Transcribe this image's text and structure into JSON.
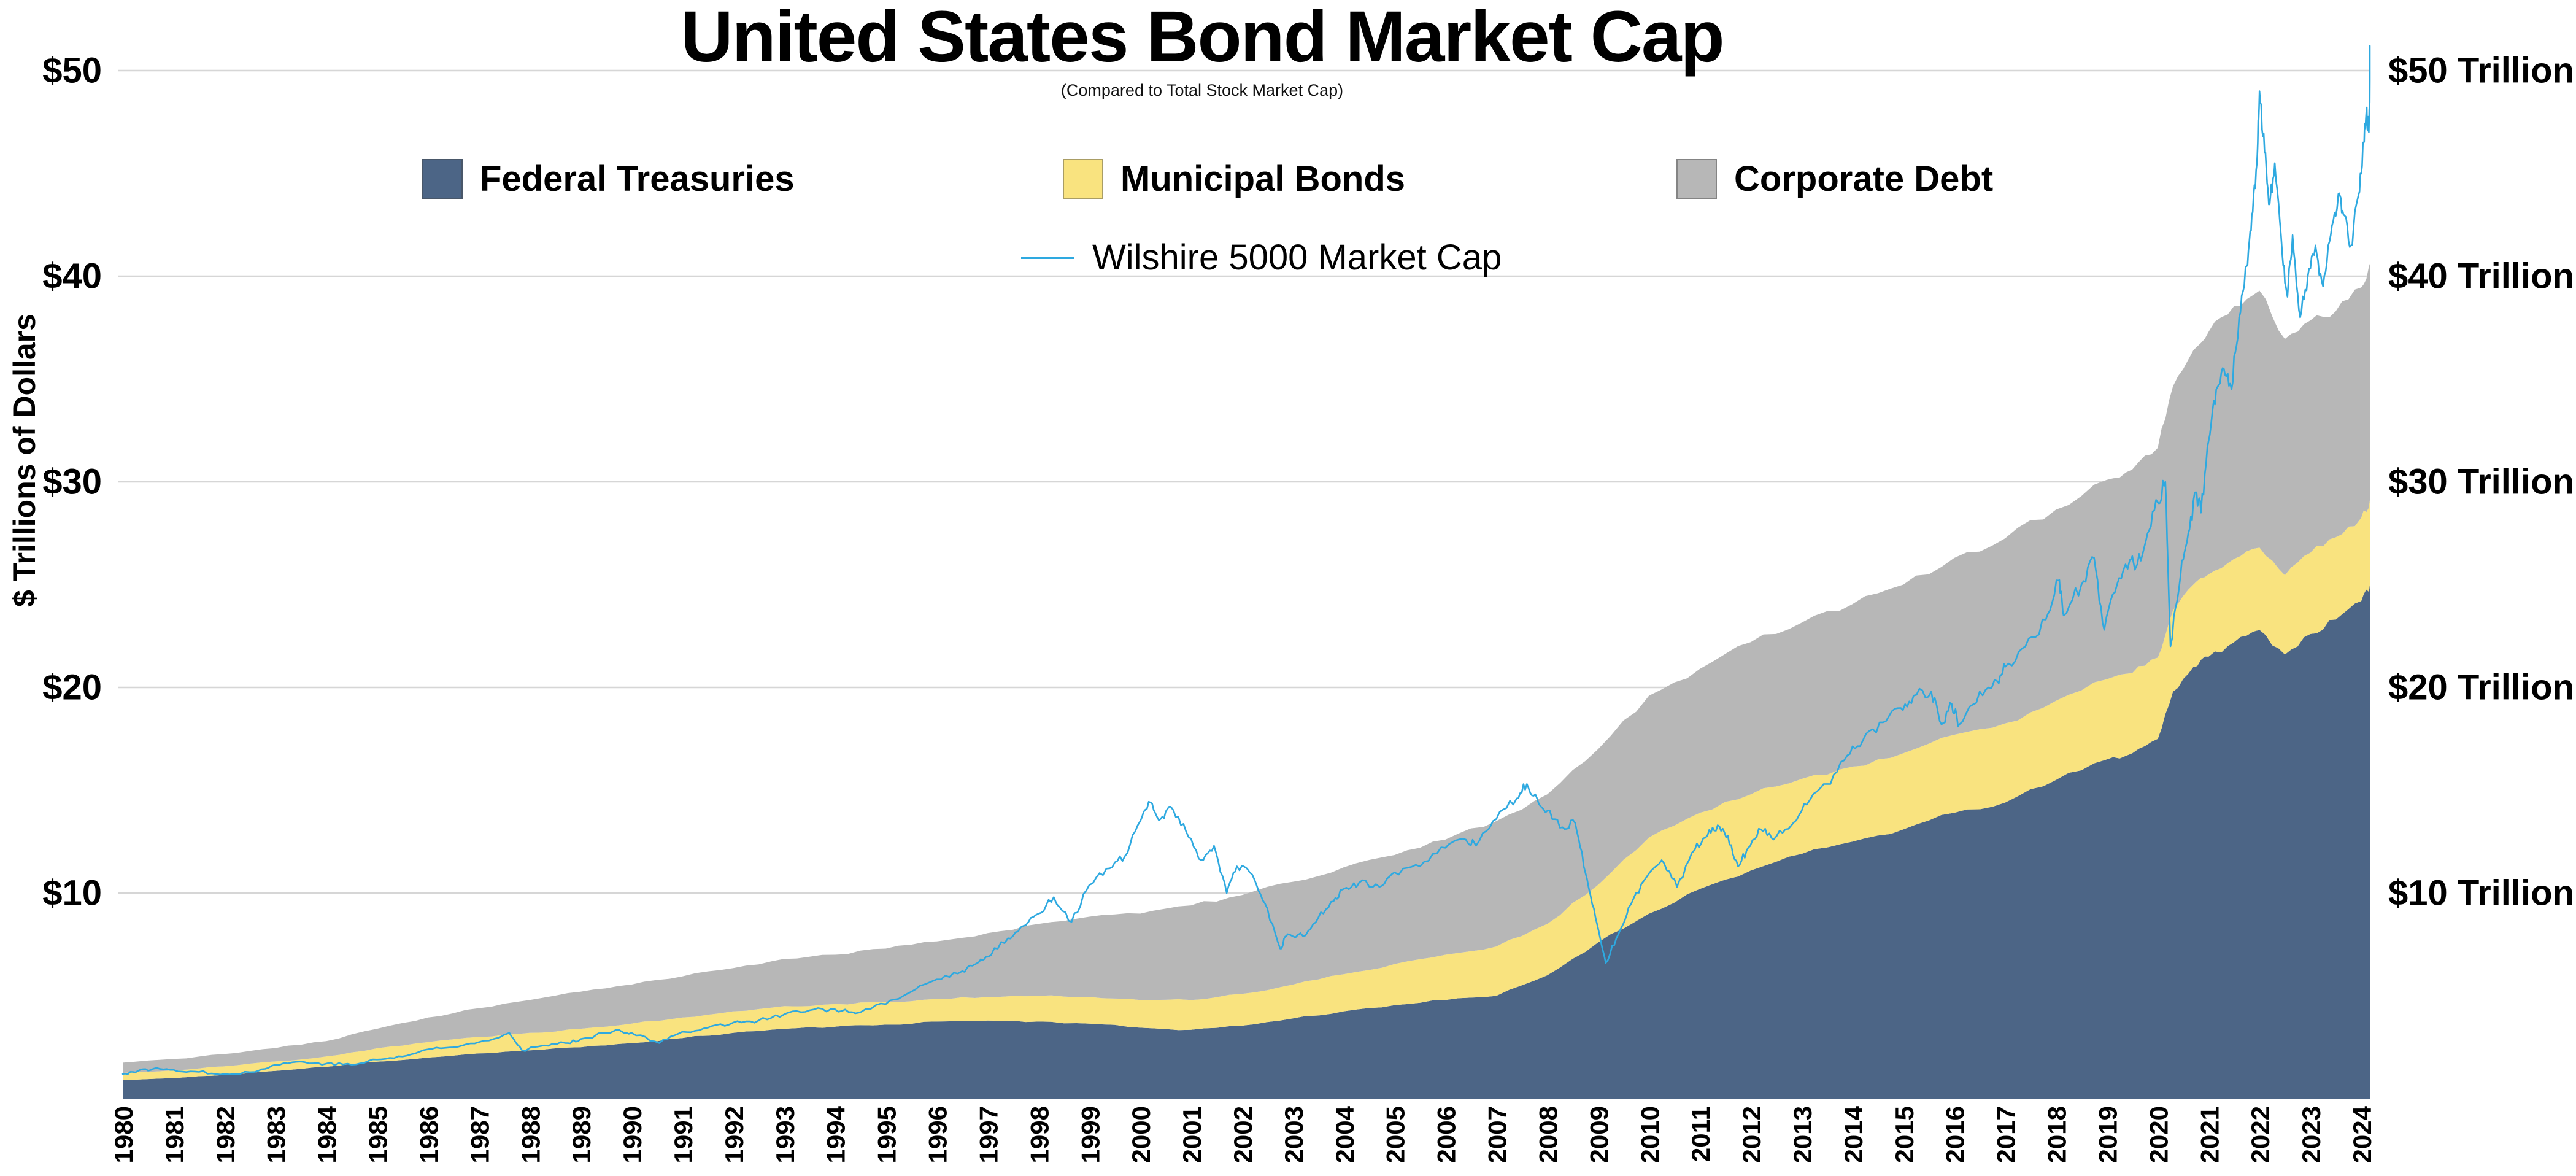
{
  "chart_data": {
    "type": "area",
    "title": "United States Bond Market Cap",
    "subtitle": "(Compared to Total Stock Market Cap)",
    "ylabel": "$ Trillions of Dollars",
    "ylim": [
      0,
      52
    ],
    "grid": true,
    "legend_position": "top",
    "x": [
      1980,
      1981,
      1982,
      1983,
      1984,
      1985,
      1986,
      1987,
      1988,
      1989,
      1990,
      1991,
      1992,
      1993,
      1994,
      1995,
      1996,
      1997,
      1998,
      1999,
      2000,
      2001,
      2002,
      2003,
      2004,
      2005,
      2006,
      2007,
      2008,
      2009,
      2010,
      2011,
      2012,
      2013,
      2014,
      2015,
      2016,
      2017,
      2018,
      2019,
      2019.5,
      2020,
      2020.3,
      2020.7,
      2021,
      2021.5,
      2022,
      2022.5,
      2023,
      2023.5,
      2024,
      2024.2
    ],
    "series": [
      {
        "name": "Federal Treasuries",
        "color": "#4c6586",
        "values": [
          0.9,
          1.0,
          1.15,
          1.35,
          1.55,
          1.8,
          2.0,
          2.2,
          2.35,
          2.5,
          2.7,
          2.95,
          3.2,
          3.4,
          3.5,
          3.6,
          3.75,
          3.8,
          3.75,
          3.65,
          3.45,
          3.35,
          3.55,
          3.9,
          4.25,
          4.55,
          4.8,
          5.0,
          6.0,
          7.6,
          9.0,
          10.2,
          11.1,
          11.9,
          12.5,
          13.1,
          13.9,
          14.4,
          15.5,
          16.5,
          16.8,
          17.5,
          19.8,
          21.0,
          21.5,
          22.2,
          22.8,
          21.6,
          22.6,
          23.3,
          24.2,
          25.0
        ]
      },
      {
        "name": "Municipal Bonds",
        "color": "#f9e37f",
        "values": [
          0.35,
          0.38,
          0.42,
          0.46,
          0.5,
          0.65,
          0.75,
          0.8,
          0.85,
          0.9,
          0.95,
          1.0,
          1.05,
          1.1,
          1.1,
          1.1,
          1.1,
          1.15,
          1.25,
          1.3,
          1.35,
          1.45,
          1.55,
          1.65,
          1.8,
          2.0,
          2.2,
          2.4,
          2.5,
          2.8,
          3.7,
          3.7,
          3.7,
          3.65,
          3.65,
          3.7,
          3.8,
          3.85,
          3.85,
          3.9,
          3.9,
          3.95,
          3.95,
          4.0,
          4.0,
          4.05,
          4.0,
          3.85,
          3.95,
          4.0,
          4.05,
          4.1
        ]
      },
      {
        "name": "Corporate Debt",
        "color": "#b7b7b7",
        "values": [
          0.5,
          0.55,
          0.6,
          0.65,
          0.75,
          0.95,
          1.2,
          1.4,
          1.6,
          1.8,
          1.9,
          2.0,
          2.1,
          2.3,
          2.4,
          2.6,
          2.8,
          3.1,
          3.5,
          3.9,
          4.2,
          4.6,
          4.8,
          5.0,
          5.2,
          5.3,
          5.6,
          6.1,
          6.3,
          6.6,
          6.9,
          7.0,
          7.4,
          7.6,
          7.9,
          8.2,
          8.6,
          9.0,
          9.3,
          9.7,
          9.9,
          10.2,
          10.9,
          11.4,
          11.8,
          12.3,
          12.5,
          11.5,
          11.3,
          11.0,
          11.2,
          11.5
        ]
      }
    ],
    "line": {
      "name": "Wilshire 5000 Market Cap",
      "color": "#2ea9e0",
      "x": [
        1980.0,
        1980.3,
        1980.6,
        1981.0,
        1981.5,
        1982.0,
        1982.6,
        1983.0,
        1983.5,
        1984.0,
        1984.5,
        1985.0,
        1985.5,
        1986.0,
        1986.5,
        1987.0,
        1987.6,
        1987.85,
        1988.2,
        1988.7,
        1989.0,
        1989.7,
        1990.0,
        1990.55,
        1991.0,
        1991.5,
        1992.0,
        1992.5,
        1993.0,
        1993.5,
        1994.0,
        1994.4,
        1995.0,
        1995.5,
        1996.0,
        1996.5,
        1996.8,
        1997.0,
        1997.4,
        1997.7,
        1998.0,
        1998.3,
        1998.65,
        1999.0,
        1999.4,
        1999.7,
        2000.0,
        2000.2,
        2000.4,
        2000.6,
        2000.9,
        2001.2,
        2001.45,
        2001.7,
        2001.9,
        2002.2,
        2002.45,
        2002.75,
        2002.9,
        2003.2,
        2003.5,
        2003.8,
        2004.0,
        2004.3,
        2004.7,
        2005.0,
        2005.5,
        2006.0,
        2006.4,
        2006.6,
        2007.0,
        2007.4,
        2007.6,
        2007.8,
        2008.0,
        2008.3,
        2008.55,
        2008.75,
        2008.95,
        2009.15,
        2009.4,
        2009.6,
        2009.9,
        2010.25,
        2010.55,
        2010.9,
        2011.15,
        2011.35,
        2011.55,
        2011.75,
        2011.95,
        2012.2,
        2012.45,
        2012.8,
        2013.1,
        2013.5,
        2013.9,
        2014.2,
        2014.6,
        2014.95,
        2015.2,
        2015.55,
        2015.75,
        2015.95,
        2016.1,
        2016.5,
        2016.85,
        2017.0,
        2017.4,
        2017.8,
        2018.05,
        2018.15,
        2018.5,
        2018.75,
        2018.95,
        2019.2,
        2019.45,
        2019.6,
        2019.8,
        2020.0,
        2020.15,
        2020.25,
        2020.45,
        2020.6,
        2020.75,
        2020.85,
        2021.0,
        2021.15,
        2021.3,
        2021.45,
        2021.6,
        2021.75,
        2021.85,
        2021.95,
        2022.0,
        2022.1,
        2022.2,
        2022.3,
        2022.45,
        2022.55,
        2022.65,
        2022.8,
        2022.95,
        2023.1,
        2023.25,
        2023.4,
        2023.55,
        2023.65,
        2023.8,
        2023.95,
        2024.05,
        2024.1,
        2024.15,
        2024.2
      ],
      "values": [
        1.2,
        1.35,
        1.45,
        1.4,
        1.3,
        1.2,
        1.3,
        1.65,
        1.8,
        1.7,
        1.65,
        1.9,
        2.05,
        2.4,
        2.5,
        2.75,
        3.2,
        2.35,
        2.55,
        2.7,
        2.9,
        3.35,
        3.2,
        2.7,
        3.25,
        3.45,
        3.7,
        3.8,
        4.1,
        4.3,
        4.35,
        4.15,
        4.6,
        5.2,
        5.8,
        6.2,
        6.6,
        6.9,
        7.8,
        8.4,
        9.0,
        9.8,
        8.6,
        10.4,
        11.2,
        11.8,
        13.5,
        14.4,
        13.6,
        14.2,
        13.0,
        11.6,
        12.3,
        10.0,
        11.3,
        10.9,
        9.5,
        7.3,
        8.0,
        7.9,
        8.8,
        9.6,
        10.2,
        10.5,
        10.3,
        11.0,
        11.3,
        12.2,
        12.6,
        12.3,
        13.6,
        14.6,
        15.3,
        14.6,
        14.0,
        13.2,
        13.4,
        11.0,
        8.8,
        6.6,
        8.0,
        9.3,
        10.6,
        11.6,
        10.3,
        12.1,
        12.8,
        13.3,
        12.8,
        11.3,
        12.2,
        13.1,
        12.6,
        13.3,
        14.3,
        15.3,
        16.7,
        17.4,
        18.3,
        19.0,
        19.6,
        19.8,
        18.2,
        19.2,
        18.2,
        19.8,
        20.3,
        21.0,
        22.0,
        23.3,
        25.2,
        23.5,
        25.0,
        26.3,
        22.8,
        25.0,
        26.2,
        26.0,
        27.5,
        29.0,
        30.0,
        22.0,
        25.5,
        27.5,
        29.5,
        28.5,
        32.0,
        34.5,
        35.5,
        34.5,
        38.0,
        40.5,
        43.0,
        45.5,
        49.0,
        46.0,
        43.5,
        45.5,
        41.0,
        39.0,
        42.0,
        38.0,
        40.0,
        41.5,
        39.5,
        42.0,
        44.0,
        43.0,
        41.5,
        44.0,
        46.5,
        48.0,
        47.0,
        51.2
      ]
    },
    "yticks": {
      "values": [
        10,
        20,
        30,
        40,
        50
      ],
      "left_labels": [
        "$10",
        "$20",
        "$30",
        "$40",
        "$50"
      ],
      "right_labels": [
        "$10 Trillion",
        "$20 Trillion",
        "$30 Trillion",
        "$40 Trillion",
        "$50 Trillion"
      ]
    },
    "xticks": [
      1980,
      1981,
      1982,
      1983,
      1984,
      1985,
      1986,
      1987,
      1988,
      1989,
      1990,
      1991,
      1992,
      1993,
      1994,
      1995,
      1996,
      1997,
      1998,
      1999,
      2000,
      2001,
      2002,
      2003,
      2004,
      2005,
      2006,
      2007,
      2008,
      2009,
      2010,
      2011,
      2012,
      2013,
      2014,
      2015,
      2016,
      2017,
      2018,
      2019,
      2020,
      2021,
      2022,
      2023,
      2024
    ],
    "colors": {
      "grid": "#d6d6d6",
      "text": "#000000",
      "background": "#ffffff"
    }
  }
}
